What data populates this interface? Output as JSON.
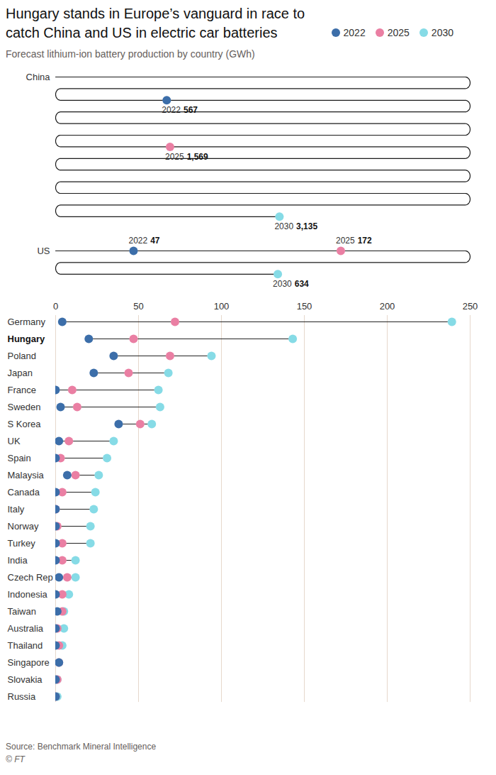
{
  "chart_data": {
    "type": "dot",
    "title": "Hungary stands in Europe’s vanguard in race to catch China and US in electric car batteries",
    "subtitle": "Forecast lithium-ion battery production by country (GWh)",
    "orientation": "horizontal",
    "categories": [
      "Germany",
      "Hungary",
      "Poland",
      "Japan",
      "France",
      "Sweden",
      "S Korea",
      "UK",
      "Spain",
      "Malaysia",
      "Canada",
      "Italy",
      "Norway",
      "Turkey",
      "India",
      "Czech Rep",
      "Indonesia",
      "Taiwan",
      "Australia",
      "Thailand",
      "Singapore",
      "Slovakia",
      "Russia"
    ],
    "series": [
      {
        "name": "2022",
        "color": "#3c6ea9",
        "values": [
          4,
          20,
          35,
          23,
          0,
          3,
          38,
          2,
          0,
          7,
          0,
          0,
          0,
          0,
          0,
          2,
          0,
          1,
          0,
          0,
          2,
          0,
          0
        ]
      },
      {
        "name": "2025",
        "color": "#ea7fa3",
        "values": [
          72,
          47,
          69,
          44,
          10,
          13,
          51,
          8,
          3,
          12,
          4,
          0,
          1,
          4,
          4,
          7,
          4,
          4,
          1,
          2,
          2,
          1,
          0
        ]
      },
      {
        "name": "2030",
        "color": "#86dbe6",
        "values": [
          239,
          143,
          94,
          68,
          62,
          63,
          58,
          35,
          31,
          26,
          24,
          23,
          21,
          21,
          12,
          12,
          8,
          5,
          5,
          4,
          2,
          1,
          1
        ]
      }
    ],
    "leaders": [
      {
        "category": "China",
        "values": [
          567,
          1569,
          3135
        ],
        "value_labels": [
          "567",
          "1,569",
          "3,135"
        ]
      },
      {
        "category": "US",
        "values": [
          47,
          172,
          634
        ]
      }
    ],
    "xlim": [
      0,
      250
    ],
    "xticks": [
      0,
      50,
      100,
      150,
      200,
      250
    ],
    "grid": true,
    "legend": "top right",
    "highlight": "Hungary",
    "source": "Source: Benchmark Mineral Intelligence",
    "credit": "© FT"
  }
}
